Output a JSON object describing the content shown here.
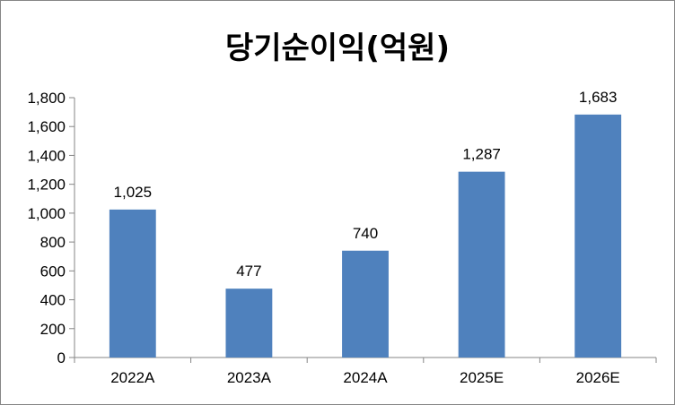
{
  "chart_data": {
    "type": "bar",
    "title": "당기순이익(억원)",
    "categories": [
      "2022A",
      "2023A",
      "2024A",
      "2025E",
      "2026E"
    ],
    "values": [
      1025,
      477,
      740,
      1287,
      1683
    ],
    "data_labels": [
      "1,025",
      "477",
      "740",
      "1,287",
      "1,683"
    ],
    "ylim": [
      0,
      1800
    ],
    "yticks": [
      0,
      200,
      400,
      600,
      800,
      1000,
      1200,
      1400,
      1600,
      1800
    ],
    "ytick_labels": [
      "0",
      "200",
      "400",
      "600",
      "800",
      "1,000",
      "1,200",
      "1,400",
      "1,600",
      "1,800"
    ],
    "xlabel": "",
    "ylabel": "",
    "grid": false,
    "legend": false,
    "bar_color": "#4F81BD",
    "axis_color": "#868686"
  }
}
